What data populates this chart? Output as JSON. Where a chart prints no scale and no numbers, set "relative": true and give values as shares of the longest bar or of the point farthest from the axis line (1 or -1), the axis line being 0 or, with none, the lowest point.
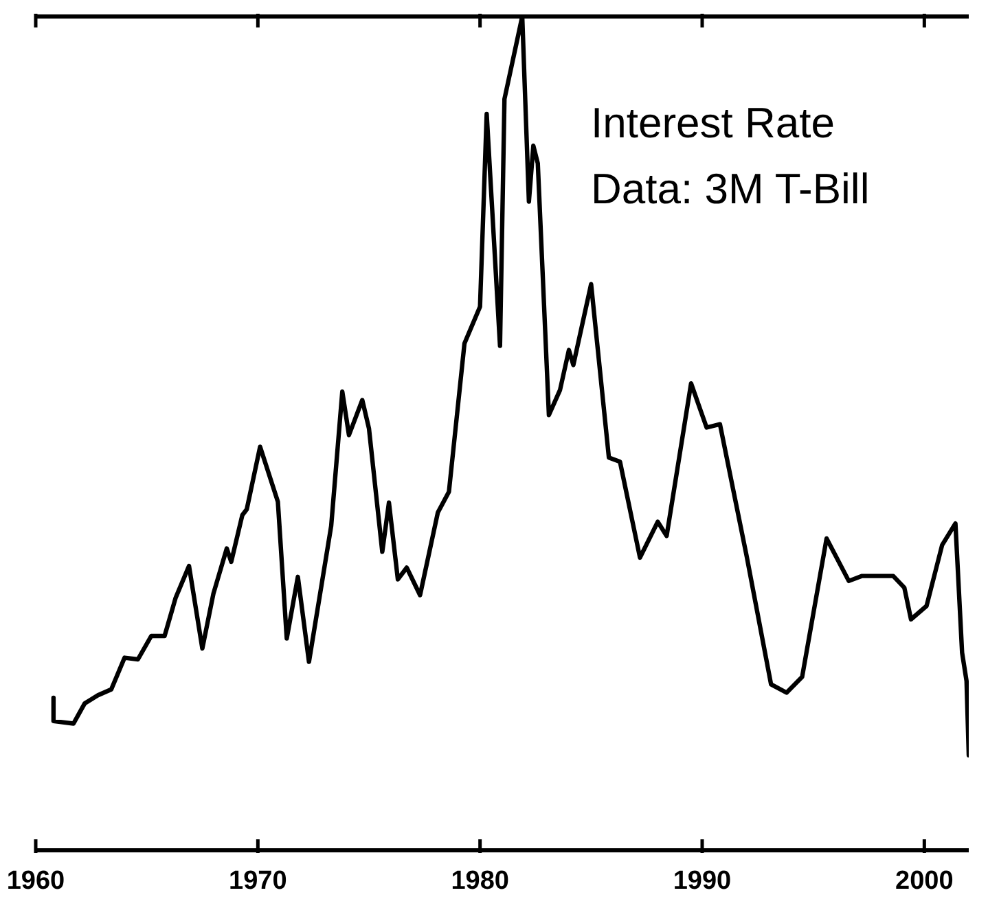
{
  "chart_data": {
    "type": "line",
    "relative": true,
    "annotations": [
      "Interest Rate",
      "Data: 3M T-Bill"
    ],
    "xlim": [
      1960,
      2002
    ],
    "xticks": [
      1960,
      1970,
      1980,
      1990,
      2000
    ],
    "x": [
      1960.8,
      1960.8,
      1961.7,
      1962.2,
      1962.8,
      1963.4,
      1964.0,
      1964.6,
      1965.2,
      1965.8,
      1966.3,
      1966.9,
      1967.5,
      1968.0,
      1968.6,
      1968.8,
      1969.3,
      1969.5,
      1970.1,
      1970.9,
      1971.3,
      1971.8,
      1972.3,
      1973.3,
      1973.8,
      1974.1,
      1974.7,
      1975.0,
      1975.6,
      1975.9,
      1976.3,
      1976.7,
      1977.3,
      1978.1,
      1978.6,
      1979.3,
      1980.0,
      1980.3,
      1980.9,
      1981.1,
      1981.9,
      1982.2,
      1982.4,
      1982.6,
      1983.1,
      1983.6,
      1984.0,
      1984.2,
      1985.0,
      1985.8,
      1986.3,
      1987.2,
      1988.0,
      1988.4,
      1989.5,
      1990.2,
      1990.8,
      1992.0,
      1993.1,
      1993.8,
      1994.5,
      1995.6,
      1996.6,
      1997.2,
      1998.6,
      1999.1,
      1999.4,
      2000.1,
      2000.8,
      2001.4,
      2001.7,
      2001.9,
      2002.0
    ],
    "series": [
      {
        "color": "#000000",
        "values": [
          0.183,
          0.155,
          0.152,
          0.176,
          0.186,
          0.193,
          0.231,
          0.229,
          0.257,
          0.257,
          0.303,
          0.341,
          0.242,
          0.308,
          0.362,
          0.346,
          0.402,
          0.409,
          0.484,
          0.418,
          0.254,
          0.328,
          0.226,
          0.389,
          0.55,
          0.498,
          0.54,
          0.506,
          0.358,
          0.417,
          0.325,
          0.339,
          0.306,
          0.405,
          0.43,
          0.608,
          0.652,
          0.883,
          0.605,
          0.901,
          1.0,
          0.778,
          0.845,
          0.824,
          0.522,
          0.552,
          0.6,
          0.582,
          0.679,
          0.471,
          0.466,
          0.351,
          0.394,
          0.377,
          0.56,
          0.507,
          0.511,
          0.353,
          0.199,
          0.189,
          0.208,
          0.374,
          0.323,
          0.329,
          0.329,
          0.315,
          0.277,
          0.293,
          0.366,
          0.392,
          0.237,
          0.203,
          0.114
        ]
      }
    ]
  }
}
